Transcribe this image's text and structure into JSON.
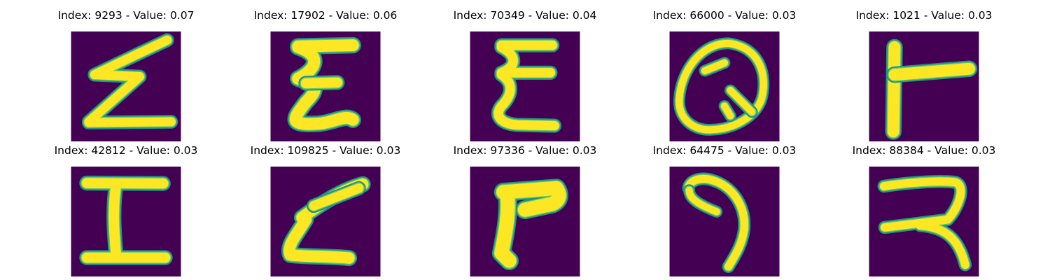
{
  "colors": {
    "background": "#440154",
    "stroke_outer": "#21908d",
    "stroke_mid": "#5ec962",
    "stroke_core": "#fde725"
  },
  "panels": [
    {
      "title": "Index: 9293 - Value: 0.07",
      "glyph": "zigzag-z"
    },
    {
      "title": "Index: 17902 - Value: 0.06",
      "glyph": "wavy-e"
    },
    {
      "title": "Index: 70349 - Value: 0.04",
      "glyph": "three-tier-e"
    },
    {
      "title": "Index: 66000 - Value: 0.03",
      "glyph": "letter-q"
    },
    {
      "title": "Index: 1021 - Value: 0.03",
      "glyph": "sideways-t"
    },
    {
      "title": "Index: 42812 - Value: 0.03",
      "glyph": "letter-i"
    },
    {
      "title": "Index: 109825 - Value: 0.03",
      "glyph": "slanted-z"
    },
    {
      "title": "Index: 97336 - Value: 0.03",
      "glyph": "thick-f"
    },
    {
      "title": "Index: 64475 - Value: 0.03",
      "glyph": "hook-stroke"
    },
    {
      "title": "Index: 88384 - Value: 0.03",
      "glyph": "reversed-r"
    }
  ]
}
